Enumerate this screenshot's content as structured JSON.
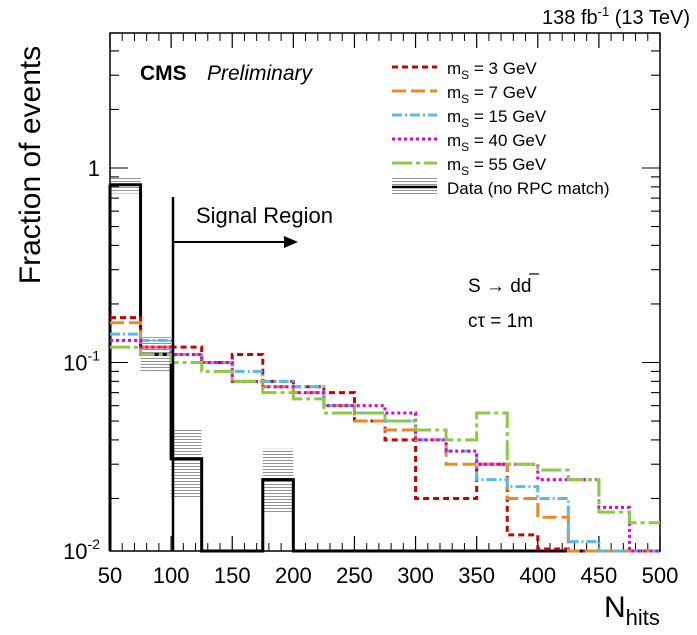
{
  "chart_data": {
    "type": "histogram",
    "lumi": {
      "value": "138 fb",
      "exp": "-1",
      "energy": " (13 TeV)"
    },
    "cms": "CMS",
    "preliminary": "Preliminary",
    "xlabel": {
      "main": "N",
      "sub": "hits"
    },
    "ylabel": "Fraction of events",
    "xlim": [
      50,
      500
    ],
    "ylim": [
      0.01,
      5
    ],
    "yscale": "log",
    "legend_position": "top-right",
    "x_ticks": [
      "50",
      "100",
      "150",
      "200",
      "250",
      "300",
      "350",
      "400",
      "450",
      "500"
    ],
    "y_ticks": [
      {
        "value": 1,
        "label": "1"
      },
      {
        "value": 0.1,
        "label": "10",
        "exp": "-1"
      },
      {
        "value": 0.01,
        "label": "10",
        "exp": "-2"
      }
    ],
    "bin_edges": [
      50,
      75,
      100,
      125,
      150,
      175,
      200,
      225,
      250,
      275,
      300,
      325,
      350,
      375,
      400,
      425,
      450,
      475,
      500
    ],
    "series": [
      {
        "name": "m_S = 3 GeV",
        "label_main": "m",
        "label_sub": "S",
        "label_rest": " = 3 GeV",
        "color": "#cc0000",
        "dash": "6,4",
        "width": 3,
        "values": [
          0.17,
          0.12,
          0.12,
          0.1,
          0.11,
          0.08,
          0.075,
          0.07,
          0.05,
          0.04,
          0.02,
          0.02,
          0.03,
          0.013,
          0.011,
          0.01,
          0.01,
          0.01
        ]
      },
      {
        "name": "m_S = 7 GeV",
        "label_main": "m",
        "label_sub": "S",
        "label_rest": " = 7 GeV",
        "color": "#ee8822",
        "dash": "14,5",
        "width": 3,
        "values": [
          0.16,
          0.12,
          0.11,
          0.1,
          0.08,
          0.075,
          0.07,
          0.06,
          0.05,
          0.045,
          0.04,
          0.03,
          0.03,
          0.02,
          0.016,
          0.01,
          0.01,
          0.01
        ]
      },
      {
        "name": "m_S = 15 GeV",
        "label_main": "m",
        "label_sub": "S",
        "label_rest": " = 15 GeV",
        "color": "#55bbee",
        "dash": "10,3,2,3",
        "width": 3,
        "values": [
          0.14,
          0.13,
          0.11,
          0.1,
          0.09,
          0.08,
          0.075,
          0.06,
          0.055,
          0.05,
          0.04,
          0.035,
          0.025,
          0.023,
          0.02,
          0.012,
          0.01,
          0.01
        ]
      },
      {
        "name": "m_S = 40 GeV",
        "label_main": "m",
        "label_sub": "S",
        "label_rest": " = 40 GeV",
        "color": "#dd00dd",
        "dash": "3,3",
        "width": 3,
        "values": [
          0.13,
          0.12,
          0.11,
          0.1,
          0.08,
          0.075,
          0.07,
          0.06,
          0.06,
          0.055,
          0.04,
          0.035,
          0.03,
          0.03,
          0.025,
          0.025,
          0.018,
          0.01
        ]
      },
      {
        "name": "m_S = 55 GeV",
        "label_main": "m",
        "label_sub": "S",
        "label_rest": " = 55 GeV",
        "color": "#88cc44",
        "dash": "20,4,4,4",
        "width": 3,
        "values": [
          0.12,
          0.11,
          0.1,
          0.09,
          0.08,
          0.07,
          0.065,
          0.055,
          0.055,
          0.05,
          0.045,
          0.04,
          0.055,
          0.03,
          0.028,
          0.025,
          0.017,
          0.015
        ]
      }
    ],
    "data_series": {
      "name": "Data (no RPC match)",
      "color": "#000000",
      "values": [
        0.82,
        0.11,
        0.032,
        0.01,
        0.01,
        0.025,
        0.01,
        0.01,
        0.01,
        0.01,
        0.01,
        0.01,
        0.01,
        0.01,
        0.01,
        0.01,
        0.01,
        0.01
      ],
      "unc_low": [
        0.74,
        0.09,
        0.02,
        null,
        null,
        0.017,
        null,
        null,
        null,
        null,
        null,
        null,
        null,
        null,
        null,
        null,
        null,
        null
      ],
      "unc_high": [
        0.9,
        0.135,
        0.045,
        null,
        null,
        0.036,
        null,
        null,
        null,
        null,
        null,
        null,
        null,
        null,
        null,
        null,
        null,
        null
      ]
    },
    "annotations": {
      "signal_region": "Signal Region",
      "signal_region_start_x": 100,
      "decay_s": "S",
      "decay_d1": "d",
      "decay_d2": "d",
      "ctau_c": "c",
      "ctau_tau": "τ",
      "ctau_rest": " = 1m"
    }
  }
}
